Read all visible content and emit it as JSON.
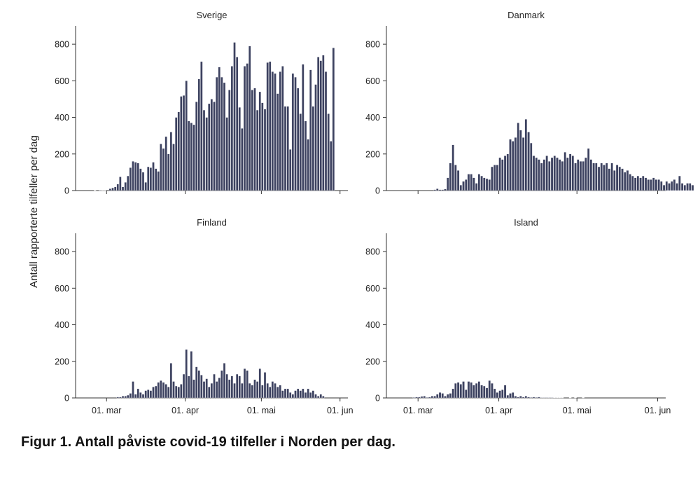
{
  "figure": {
    "ylabel": "Antall rapporterte tilfeller per dag",
    "caption": "Figur 1. Antall påviste covid-19 tilfeller i Norden per dag.",
    "bar_color": "#3d4260",
    "bar_stroke": "#ffffff"
  },
  "chart_data": [
    {
      "type": "bar",
      "title": "Sverige",
      "x_start": "2020-02-20",
      "y_ticks": [
        0,
        200,
        400,
        600,
        800
      ],
      "ylim": [
        0,
        900
      ],
      "x_ticks": [
        {
          "label": "01. mar",
          "date": "2020-03-01"
        },
        {
          "label": "01. apr",
          "date": "2020-04-01"
        },
        {
          "label": "01. mai",
          "date": "2020-05-01"
        },
        {
          "label": "01. jun",
          "date": "2020-06-01"
        }
      ],
      "values": [
        0,
        0,
        0,
        0,
        0,
        1,
        0,
        2,
        1,
        1,
        0,
        10,
        15,
        20,
        35,
        75,
        20,
        45,
        80,
        125,
        160,
        155,
        150,
        120,
        100,
        45,
        130,
        125,
        155,
        120,
        105,
        255,
        230,
        295,
        200,
        320,
        255,
        400,
        430,
        515,
        520,
        600,
        380,
        370,
        360,
        485,
        610,
        705,
        440,
        400,
        475,
        500,
        485,
        620,
        675,
        620,
        590,
        400,
        550,
        680,
        810,
        730,
        455,
        340,
        680,
        695,
        790,
        550,
        560,
        440,
        540,
        480,
        445,
        700,
        705,
        650,
        640,
        530,
        650,
        680,
        460,
        460,
        225,
        640,
        620,
        560,
        420,
        690,
        380,
        280,
        660,
        460,
        580,
        730,
        710,
        740,
        650,
        420,
        270,
        780
      ]
    },
    {
      "type": "bar",
      "title": "Danmark",
      "x_start": "2020-02-20",
      "y_ticks": [
        0,
        200,
        400,
        600,
        800
      ],
      "ylim": [
        0,
        900
      ],
      "x_ticks": [
        {
          "label": "01. mar",
          "date": "2020-03-01"
        },
        {
          "label": "01. apr",
          "date": "2020-04-01"
        },
        {
          "label": "01. mai",
          "date": "2020-05-01"
        },
        {
          "label": "01. jun",
          "date": "2020-06-01"
        }
      ],
      "values": [
        0,
        0,
        0,
        0,
        0,
        0,
        0,
        0,
        0,
        0,
        0,
        0,
        0,
        0,
        0,
        0,
        5,
        10,
        5,
        5,
        8,
        70,
        150,
        250,
        140,
        110,
        30,
        50,
        60,
        90,
        90,
        70,
        40,
        90,
        80,
        70,
        65,
        60,
        130,
        140,
        140,
        180,
        170,
        190,
        200,
        280,
        270,
        290,
        370,
        330,
        290,
        390,
        320,
        260,
        190,
        180,
        170,
        150,
        170,
        190,
        160,
        180,
        190,
        180,
        170,
        160,
        210,
        180,
        200,
        190,
        150,
        170,
        160,
        160,
        180,
        230,
        170,
        150,
        150,
        130,
        150,
        140,
        150,
        120,
        150,
        110,
        140,
        130,
        120,
        100,
        110,
        90,
        80,
        70,
        80,
        70,
        80,
        70,
        60,
        60,
        70,
        60,
        60,
        50,
        30,
        50,
        40,
        50,
        60,
        40,
        80,
        40,
        30,
        40,
        40,
        30
      ]
    },
    {
      "type": "bar",
      "title": "Finland",
      "x_start": "2020-02-20",
      "y_ticks": [
        0,
        200,
        400,
        600,
        800
      ],
      "ylim": [
        0,
        900
      ],
      "x_ticks": [
        {
          "label": "01. mar",
          "date": "2020-03-01"
        },
        {
          "label": "01. apr",
          "date": "2020-04-01"
        },
        {
          "label": "01. mai",
          "date": "2020-05-01"
        },
        {
          "label": "01. jun",
          "date": "2020-06-01"
        }
      ],
      "values": [
        0,
        0,
        0,
        0,
        0,
        0,
        0,
        0,
        0,
        0,
        0,
        0,
        0,
        0,
        5,
        5,
        10,
        10,
        15,
        25,
        90,
        20,
        50,
        30,
        20,
        40,
        45,
        40,
        60,
        65,
        85,
        95,
        85,
        75,
        60,
        190,
        90,
        65,
        60,
        75,
        130,
        265,
        120,
        255,
        100,
        170,
        150,
        125,
        90,
        105,
        60,
        80,
        130,
        90,
        110,
        150,
        190,
        130,
        100,
        120,
        80,
        130,
        120,
        80,
        160,
        150,
        80,
        70,
        100,
        90,
        160,
        70,
        140,
        80,
        60,
        90,
        80,
        60,
        70,
        40,
        50,
        50,
        30,
        20,
        40,
        50,
        40,
        50,
        30,
        50,
        30,
        40,
        20,
        10,
        20,
        10
      ]
    },
    {
      "type": "bar",
      "title": "Island",
      "x_start": "2020-02-20",
      "y_ticks": [
        0,
        200,
        400,
        600,
        800
      ],
      "ylim": [
        0,
        900
      ],
      "x_ticks": [
        {
          "label": "01. mar",
          "date": "2020-03-01"
        },
        {
          "label": "01. apr",
          "date": "2020-04-01"
        },
        {
          "label": "01. mai",
          "date": "2020-05-01"
        },
        {
          "label": "01. jun",
          "date": "2020-06-01"
        }
      ],
      "values": [
        0,
        0,
        0,
        0,
        0,
        0,
        0,
        0,
        3,
        5,
        5,
        8,
        10,
        3,
        5,
        10,
        10,
        20,
        30,
        25,
        10,
        20,
        25,
        50,
        80,
        85,
        75,
        90,
        45,
        90,
        85,
        70,
        80,
        90,
        70,
        65,
        55,
        95,
        80,
        50,
        30,
        40,
        45,
        70,
        15,
        25,
        30,
        10,
        5,
        10,
        5,
        10,
        5,
        3,
        5,
        3,
        5,
        2,
        2,
        2,
        2,
        2,
        1,
        1,
        1,
        1,
        0,
        0,
        1,
        0,
        1,
        0,
        0,
        1,
        0,
        0,
        0,
        0,
        0,
        0
      ]
    }
  ]
}
